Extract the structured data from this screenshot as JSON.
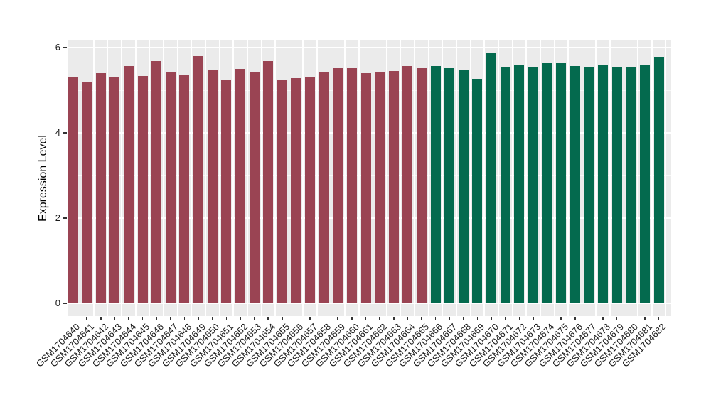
{
  "chart_data": {
    "type": "bar",
    "title": "",
    "xlabel": "",
    "ylabel": "Expression Level",
    "categories": [
      "GSM1704640",
      "GSM1704641",
      "GSM1704642",
      "GSM1704643",
      "GSM1704644",
      "GSM1704645",
      "GSM1704646",
      "GSM1704647",
      "GSM1704648",
      "GSM1704649",
      "GSM1704650",
      "GSM1704651",
      "GSM1704652",
      "GSM1704653",
      "GSM1704654",
      "GSM1704655",
      "GSM1704656",
      "GSM1704657",
      "GSM1704658",
      "GSM1704659",
      "GSM1704660",
      "GSM1704661",
      "GSM1704662",
      "GSM1704663",
      "GSM1704664",
      "GSM1704665",
      "GSM1704666",
      "GSM1704667",
      "GSM1704668",
      "GSM1704669",
      "GSM1704670",
      "GSM1704671",
      "GSM1704672",
      "GSM1704673",
      "GSM1704674",
      "GSM1704675",
      "GSM1704676",
      "GSM1704677",
      "GSM1704678",
      "GSM1704679",
      "GSM1704680",
      "GSM1704681",
      "GSM1704682"
    ],
    "values": [
      5.31,
      5.19,
      5.4,
      5.31,
      5.56,
      5.34,
      5.68,
      5.43,
      5.36,
      5.8,
      5.46,
      5.23,
      5.5,
      5.43,
      5.69,
      5.23,
      5.28,
      5.31,
      5.44,
      5.51,
      5.52,
      5.4,
      5.41,
      5.45,
      5.56,
      5.51,
      5.57,
      5.52,
      5.48,
      5.26,
      5.89,
      5.54,
      5.59,
      5.53,
      5.65,
      5.65,
      5.57,
      5.53,
      5.6,
      5.53,
      5.53,
      5.58,
      5.79
    ],
    "group_split_index": 26,
    "group_colors": [
      "#9A4453",
      "#046A4E"
    ],
    "yticks": [
      0,
      2,
      4,
      6
    ],
    "ytick_labels": [
      "0",
      "2",
      "4",
      "6"
    ],
    "minor_yticks": [
      1,
      3,
      5
    ],
    "ylim": [
      0,
      6.17
    ],
    "grid": "major+minor",
    "legend": "none",
    "panel_bg": "#EBEBEB",
    "grid_color": "#FFFFFF"
  }
}
